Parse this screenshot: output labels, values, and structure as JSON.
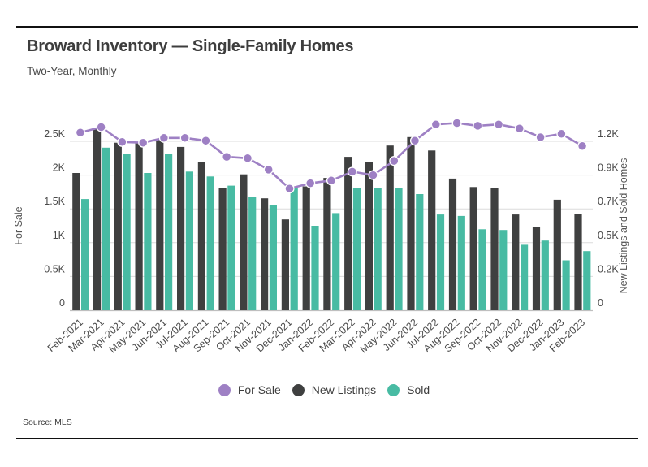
{
  "page": {
    "title": "Broward Inventory — Single-Family Homes",
    "subtitle": "Two-Year, Monthly",
    "source": "Source: MLS"
  },
  "colors": {
    "for_sale": "#9e80c4",
    "new_listings": "#3f4040",
    "sold": "#48bba3",
    "gridline": "#dcdcdc",
    "baseline": "#bfbfbf",
    "text": "#4a4a4a"
  },
  "legend": {
    "items": [
      {
        "label": "For Sale",
        "color": "#9e80c4",
        "icon": "circle-swatch"
      },
      {
        "label": "New Listings",
        "color": "#3f4040",
        "icon": "circle-swatch"
      },
      {
        "label": "Sold",
        "color": "#48bba3",
        "icon": "circle-swatch"
      }
    ]
  },
  "chart_data": {
    "type": "bar",
    "subtype": "grouped-bars-with-line-overlay",
    "title": "Broward Inventory — Single-Family Homes",
    "subtitle": "Two-Year, Monthly",
    "source": "Source: MLS",
    "grid": true,
    "legend_position": "bottom",
    "categories": [
      "Feb-2021",
      "Mar-2021",
      "Apr-2021",
      "May-2021",
      "Jun-2021",
      "Jul-2021",
      "Aug-2021",
      "Sep-2021",
      "Oct-2021",
      "Nov-2021",
      "Dec-2021",
      "Jan-2022",
      "Feb-2022",
      "Mar-2022",
      "Apr-2022",
      "May-2022",
      "Jun-2022",
      "Jul-2022",
      "Aug-2022",
      "Sep-2022",
      "Oct-2022",
      "Nov-2022",
      "Dec-2022",
      "Jan-2023",
      "Feb-2023"
    ],
    "series": [
      {
        "name": "For Sale",
        "type": "line",
        "axis": "left",
        "color": "#9e80c4",
        "values": [
          2630,
          2710,
          2490,
          2480,
          2550,
          2550,
          2510,
          2270,
          2250,
          2080,
          1800,
          1880,
          1920,
          2050,
          2000,
          2210,
          2510,
          2750,
          2770,
          2730,
          2750,
          2690,
          2560,
          2610,
          2430
        ]
      },
      {
        "name": "New Listings",
        "type": "bar",
        "axis": "right",
        "color": "#3f4040",
        "values": [
          975,
          1285,
          1190,
          1195,
          1210,
          1160,
          1055,
          870,
          965,
          795,
          645,
          880,
          940,
          1090,
          1055,
          1170,
          1230,
          1135,
          935,
          875,
          870,
          680,
          590,
          785,
          685
        ]
      },
      {
        "name": "Sold",
        "type": "bar",
        "axis": "right",
        "color": "#48bba3",
        "values": [
          790,
          1155,
          1110,
          975,
          1110,
          985,
          950,
          885,
          805,
          745,
          870,
          600,
          690,
          870,
          870,
          870,
          825,
          680,
          670,
          575,
          570,
          465,
          495,
          355,
          420
        ]
      }
    ],
    "axes": {
      "left": {
        "label": "For Sale",
        "tick_labels": [
          "0",
          "0.5K",
          "1K",
          "1.5K",
          "2K",
          "2.5K"
        ],
        "tick_values": [
          0,
          500,
          1000,
          1500,
          2000,
          2500
        ],
        "range_at_top_gridline": 2500
      },
      "right": {
        "label": "New Listings and Sold Homes",
        "tick_labels": [
          "0",
          "0.2K",
          "0.5K",
          "0.7K",
          "0.9K",
          "1.2K"
        ],
        "tick_values": [
          0,
          200,
          500,
          700,
          900,
          1200
        ],
        "range_at_top_gridline": 1200,
        "aligned_to_left_gridlines": true
      }
    }
  }
}
